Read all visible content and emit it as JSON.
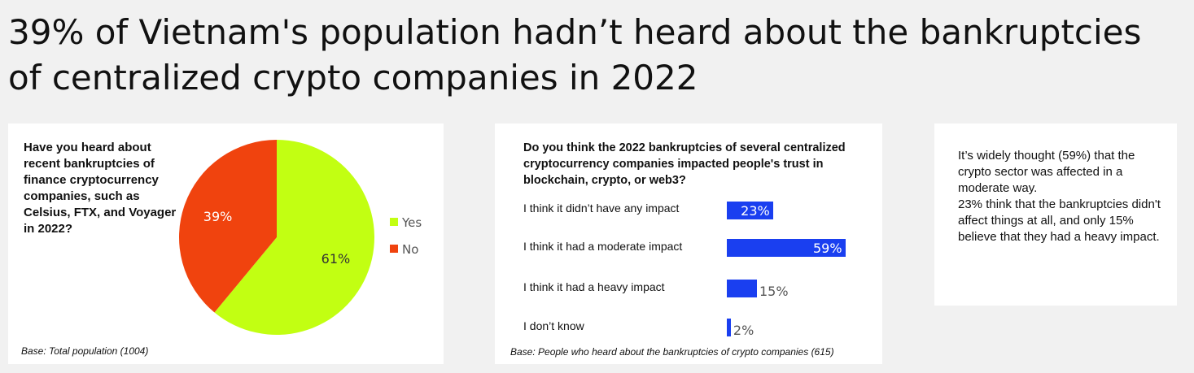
{
  "title": "39% of Vietnam's population hadn’t heard about the bankruptcies of centralized crypto companies in 2022",
  "pie_panel": {
    "question": "Have you heard about recent bankruptcies of finance cryptocurrency companies, such as Celsius, FTX, and Voyager in 2022?",
    "base": "Base: Total population (1004)"
  },
  "bar_panel": {
    "question": "Do you think the 2022 bankruptcies of several centralized cryptocurrency companies impacted people's trust in blockchain, crypto, or web3?",
    "base": "Base: People who heard about the bankruptcies of crypto companies (615)"
  },
  "summary": {
    "paragraph1": "It’s widely thought (59%) that the crypto sector was affected in a moderate way.",
    "paragraph2": "23% think that the bankruptcies didn't affect things at all, and only 15% believe that they had a heavy impact."
  },
  "chart_data": [
    {
      "type": "pie",
      "labels": [
        "Yes",
        "No"
      ],
      "values": [
        61,
        39
      ],
      "value_labels": [
        "61%",
        "39%"
      ],
      "colors": [
        "#c2ff12",
        "#f0430e"
      ],
      "label_colors": [
        "#333333",
        "#ffffff"
      ],
      "legend_position": "right"
    },
    {
      "type": "bar",
      "orientation": "horizontal",
      "categories": [
        "I think it didn’t have any impact",
        "I think it had a moderate impact",
        "I think it had a heavy impact",
        "I don’t know"
      ],
      "values": [
        23,
        59,
        15,
        2
      ],
      "value_labels": [
        "23%",
        "59%",
        "15%",
        "2%"
      ],
      "xlim": [
        0,
        60
      ],
      "color": "#1a3ff0",
      "grid": false
    }
  ]
}
